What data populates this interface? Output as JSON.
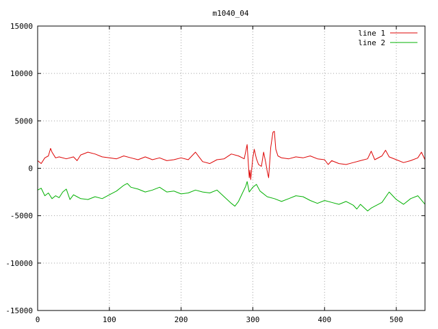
{
  "chart_data": {
    "type": "line",
    "title": "m1040_04",
    "xlabel": "",
    "ylabel": "",
    "xlim": [
      0,
      540
    ],
    "ylim": [
      -15000,
      15000
    ],
    "x_ticks": [
      0,
      100,
      200,
      300,
      400,
      500
    ],
    "y_ticks": [
      -15000,
      -10000,
      -5000,
      0,
      5000,
      10000,
      15000
    ],
    "grid": true,
    "legend_position": "top-right",
    "series": [
      {
        "name": "line 1",
        "color": "#dd0000",
        "x": [
          0,
          5,
          10,
          15,
          18,
          20,
          25,
          30,
          40,
          50,
          55,
          60,
          70,
          80,
          90,
          100,
          110,
          120,
          130,
          140,
          150,
          160,
          170,
          180,
          190,
          200,
          210,
          220,
          225,
          230,
          240,
          250,
          260,
          270,
          280,
          288,
          292,
          295,
          296,
          297,
          300,
          302,
          305,
          308,
          312,
          315,
          318,
          320,
          322,
          325,
          328,
          330,
          332,
          335,
          340,
          350,
          360,
          370,
          380,
          390,
          400,
          405,
          410,
          420,
          430,
          440,
          450,
          460,
          465,
          470,
          480,
          485,
          490,
          500,
          510,
          520,
          530,
          535,
          540
        ],
        "y": [
          800,
          500,
          1100,
          1300,
          2100,
          1700,
          1100,
          1200,
          1000,
          1200,
          800,
          1400,
          1700,
          1500,
          1200,
          1100,
          1000,
          1300,
          1100,
          900,
          1200,
          900,
          1100,
          800,
          900,
          1100,
          900,
          1700,
          1200,
          700,
          500,
          900,
          1000,
          1500,
          1300,
          1000,
          2500,
          -1000,
          -200,
          -1200,
          1100,
          2000,
          1000,
          400,
          200,
          1700,
          600,
          -300,
          -1000,
          2200,
          3800,
          3900,
          2000,
          1300,
          1100,
          1000,
          1200,
          1100,
          1300,
          1000,
          900,
          400,
          800,
          500,
          400,
          600,
          800,
          1000,
          1800,
          900,
          1300,
          1900,
          1200,
          900,
          600,
          800,
          1100,
          1700,
          900
        ]
      },
      {
        "name": "line 2",
        "color": "#00b000",
        "x": [
          0,
          5,
          10,
          15,
          20,
          25,
          30,
          35,
          40,
          45,
          50,
          55,
          60,
          70,
          80,
          90,
          100,
          110,
          120,
          125,
          130,
          140,
          150,
          160,
          170,
          180,
          190,
          200,
          210,
          220,
          230,
          240,
          250,
          260,
          270,
          275,
          280,
          285,
          290,
          292,
          295,
          300,
          305,
          310,
          320,
          330,
          340,
          350,
          360,
          370,
          380,
          390,
          400,
          410,
          420,
          430,
          440,
          445,
          450,
          460,
          465,
          470,
          480,
          490,
          500,
          510,
          520,
          530,
          540
        ],
        "y": [
          -2300,
          -2100,
          -2900,
          -2600,
          -3200,
          -2900,
          -3100,
          -2500,
          -2200,
          -3300,
          -2800,
          -3000,
          -3200,
          -3300,
          -3000,
          -3200,
          -2800,
          -2400,
          -1800,
          -1600,
          -2000,
          -2200,
          -2500,
          -2300,
          -2000,
          -2500,
          -2400,
          -2700,
          -2600,
          -2300,
          -2500,
          -2600,
          -2300,
          -3000,
          -3700,
          -4000,
          -3500,
          -2700,
          -1900,
          -1400,
          -2500,
          -2000,
          -1700,
          -2400,
          -3000,
          -3200,
          -3500,
          -3200,
          -2900,
          -3000,
          -3400,
          -3700,
          -3400,
          -3600,
          -3800,
          -3500,
          -3900,
          -4300,
          -3800,
          -4500,
          -4200,
          -4000,
          -3600,
          -2500,
          -3300,
          -3800,
          -3200,
          -2900,
          -3800
        ]
      }
    ]
  }
}
